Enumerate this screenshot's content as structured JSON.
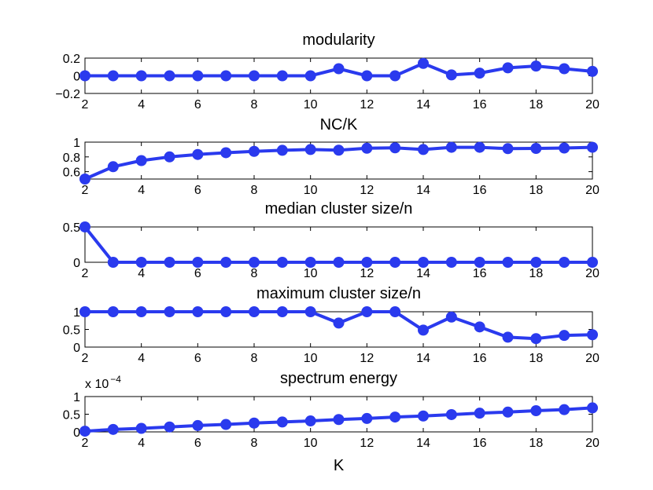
{
  "chart_data": [
    {
      "type": "line",
      "title": "modularity",
      "x": [
        2,
        3,
        4,
        5,
        6,
        7,
        8,
        9,
        10,
        11,
        12,
        13,
        14,
        15,
        16,
        17,
        18,
        19,
        20
      ],
      "values": [
        0,
        0,
        0,
        0,
        0,
        0,
        0,
        0,
        0,
        0.08,
        0,
        0,
        0.14,
        0.01,
        0.03,
        0.09,
        0.11,
        0.08,
        0.05
      ],
      "xlim": [
        2,
        20
      ],
      "ylim": [
        -0.2,
        0.2
      ],
      "yticks": [
        -0.2,
        0,
        0.2
      ],
      "ytick_labels": [
        "−0.2",
        "0",
        "0.2"
      ],
      "xticks": [
        2,
        4,
        6,
        8,
        10,
        12,
        14,
        16,
        18,
        20
      ],
      "xtick_labels": [
        "2",
        "4",
        "6",
        "8",
        "10",
        "12",
        "14",
        "16",
        "18",
        "20"
      ],
      "scale_label": "",
      "xlabel": ""
    },
    {
      "type": "line",
      "title": "NC/K",
      "x": [
        2,
        3,
        4,
        5,
        6,
        7,
        8,
        9,
        10,
        11,
        12,
        13,
        14,
        15,
        16,
        17,
        18,
        19,
        20
      ],
      "values": [
        0.5,
        0.667,
        0.75,
        0.8,
        0.833,
        0.857,
        0.875,
        0.889,
        0.9,
        0.891,
        0.917,
        0.923,
        0.9,
        0.93,
        0.93,
        0.912,
        0.915,
        0.92,
        0.93
      ],
      "xlim": [
        2,
        20
      ],
      "ylim": [
        0.5,
        1
      ],
      "yticks": [
        0.6,
        0.8,
        1
      ],
      "ytick_labels": [
        "0.6",
        "0.8",
        "1"
      ],
      "xticks": [
        2,
        4,
        6,
        8,
        10,
        12,
        14,
        16,
        18,
        20
      ],
      "xtick_labels": [
        "2",
        "4",
        "6",
        "8",
        "10",
        "12",
        "14",
        "16",
        "18",
        "20"
      ],
      "scale_label": "",
      "xlabel": ""
    },
    {
      "type": "line",
      "title": "median cluster size/n",
      "x": [
        2,
        3,
        4,
        5,
        6,
        7,
        8,
        9,
        10,
        11,
        12,
        13,
        14,
        15,
        16,
        17,
        18,
        19,
        20
      ],
      "values": [
        0.5,
        0,
        0,
        0,
        0,
        0,
        0,
        0,
        0,
        0,
        0,
        0,
        0,
        0,
        0,
        0,
        0,
        0,
        0
      ],
      "xlim": [
        2,
        20
      ],
      "ylim": [
        0,
        0.5
      ],
      "yticks": [
        0,
        0.5
      ],
      "ytick_labels": [
        "0",
        "0.5"
      ],
      "xticks": [
        2,
        4,
        6,
        8,
        10,
        12,
        14,
        16,
        18,
        20
      ],
      "xtick_labels": [
        "2",
        "4",
        "6",
        "8",
        "10",
        "12",
        "14",
        "16",
        "18",
        "20"
      ],
      "scale_label": "",
      "xlabel": ""
    },
    {
      "type": "line",
      "title": "maximum cluster size/n",
      "x": [
        2,
        3,
        4,
        5,
        6,
        7,
        8,
        9,
        10,
        11,
        12,
        13,
        14,
        15,
        16,
        17,
        18,
        19,
        20
      ],
      "values": [
        1,
        1,
        1,
        1,
        1,
        1,
        1,
        1,
        1,
        0.68,
        1,
        1,
        0.48,
        0.85,
        0.57,
        0.28,
        0.24,
        0.33,
        0.35
      ],
      "xlim": [
        2,
        20
      ],
      "ylim": [
        0,
        1
      ],
      "yticks": [
        0,
        0.5,
        1
      ],
      "ytick_labels": [
        "0",
        "0.5",
        "1"
      ],
      "xticks": [
        2,
        4,
        6,
        8,
        10,
        12,
        14,
        16,
        18,
        20
      ],
      "xtick_labels": [
        "2",
        "4",
        "6",
        "8",
        "10",
        "12",
        "14",
        "16",
        "18",
        "20"
      ],
      "scale_label": "",
      "xlabel": ""
    },
    {
      "type": "line",
      "title": "spectrum energy",
      "x": [
        2,
        3,
        4,
        5,
        6,
        7,
        8,
        9,
        10,
        11,
        12,
        13,
        14,
        15,
        16,
        17,
        18,
        19,
        20
      ],
      "values": [
        0.02,
        0.07,
        0.1,
        0.14,
        0.18,
        0.21,
        0.25,
        0.28,
        0.31,
        0.35,
        0.38,
        0.42,
        0.45,
        0.49,
        0.53,
        0.56,
        0.6,
        0.63,
        0.68
      ],
      "xlim": [
        2,
        20
      ],
      "ylim": [
        0,
        1
      ],
      "yticks": [
        0,
        0.5,
        1
      ],
      "ytick_labels": [
        "0",
        "0.5",
        "1"
      ],
      "xticks": [
        2,
        4,
        6,
        8,
        10,
        12,
        14,
        16,
        18,
        20
      ],
      "xtick_labels": [
        "2",
        "4",
        "6",
        "8",
        "10",
        "12",
        "14",
        "16",
        "18",
        "20"
      ],
      "scale_label": "x 10",
      "scale_exponent": "−4",
      "xlabel": "K"
    }
  ],
  "style": {
    "series_color": "#2a3aee"
  }
}
